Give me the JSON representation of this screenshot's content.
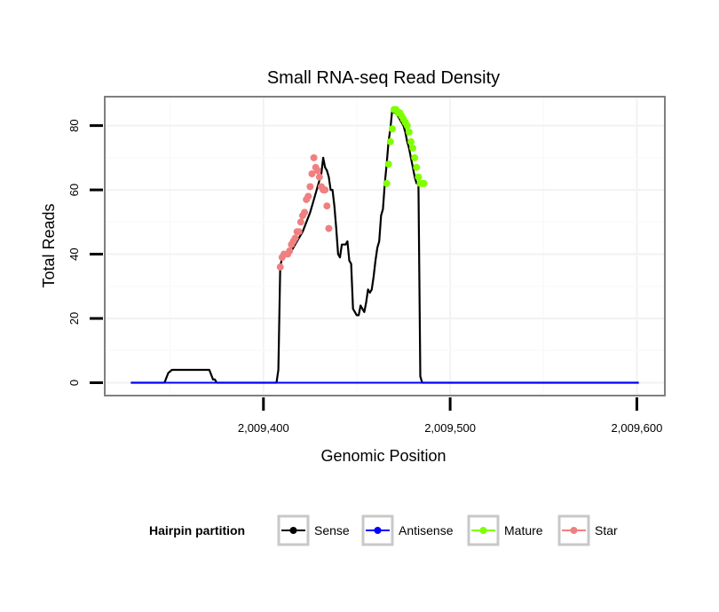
{
  "chart_data": {
    "type": "line",
    "title": "Small RNA-seq Read Density",
    "xlabel": "Genomic Position",
    "ylabel": "Total Reads",
    "xlim": [
      2009315,
      2009615
    ],
    "ylim": [
      -4,
      89
    ],
    "x_ticks": [
      2009400,
      2009500,
      2009600
    ],
    "x_tick_labels": [
      "2,009,400",
      "2,009,500",
      "2,009,600"
    ],
    "y_ticks": [
      0,
      20,
      40,
      60,
      80
    ],
    "y_tick_labels": [
      "0",
      "20",
      "40",
      "60",
      "80"
    ],
    "grid": true,
    "legend_position": "bottom",
    "legend": {
      "title": "Hairpin partition",
      "entries": [
        "Sense",
        "Antisense",
        "Mature",
        "Star"
      ]
    },
    "colors": {
      "Sense": "#000000",
      "Antisense": "#0000ff",
      "Mature": "#7fff00",
      "Star": "#f08080"
    },
    "series": [
      {
        "name": "Sense",
        "x": [
          2009329,
          2009347,
          2009349,
          2009351,
          2009369,
          2009371,
          2009373,
          2009374,
          2009375,
          2009376,
          2009407,
          2009408,
          2009409,
          2009410,
          2009411,
          2009413,
          2009415,
          2009417,
          2009419,
          2009421,
          2009423,
          2009425,
          2009427,
          2009429,
          2009431,
          2009432,
          2009433,
          2009434,
          2009435,
          2009436,
          2009437,
          2009438,
          2009439,
          2009440,
          2009441,
          2009442,
          2009443,
          2009444,
          2009445,
          2009446,
          2009447,
          2009448,
          2009449,
          2009450,
          2009451,
          2009452,
          2009453,
          2009454,
          2009455,
          2009456,
          2009457,
          2009458,
          2009459,
          2009460,
          2009461,
          2009462,
          2009463,
          2009464,
          2009465,
          2009466,
          2009467,
          2009468,
          2009469,
          2009470,
          2009471,
          2009472,
          2009473,
          2009474,
          2009475,
          2009476,
          2009477,
          2009478,
          2009479,
          2009480,
          2009481,
          2009482,
          2009483,
          2009484,
          2009485,
          2009486,
          2009487,
          2009488,
          2009489,
          2009490,
          2009501,
          2009601
        ],
        "values": [
          0,
          0,
          3,
          4,
          4,
          4,
          1,
          1,
          0,
          0,
          0,
          4,
          36,
          39,
          40,
          40,
          41,
          43,
          45,
          47,
          50,
          53,
          57,
          61,
          65,
          70,
          67,
          66,
          64,
          60,
          60,
          55,
          48,
          40,
          39,
          43,
          43,
          43,
          44,
          38,
          37,
          23,
          22,
          21,
          21,
          24,
          23,
          22,
          25,
          29,
          28,
          29,
          33,
          38,
          42,
          44,
          52,
          54,
          62,
          68,
          75,
          79,
          85,
          84,
          84,
          83,
          82,
          81,
          80,
          78,
          75,
          73,
          70,
          67,
          64,
          62,
          62,
          2,
          0,
          0,
          0,
          0,
          0,
          0,
          0,
          0
        ]
      },
      {
        "name": "Antisense",
        "x": [
          2009329,
          2009601
        ],
        "values": [
          0,
          0
        ]
      },
      {
        "name": "Mature",
        "x": [
          2009466,
          2009467,
          2009468,
          2009469,
          2009470,
          2009471,
          2009472,
          2009473,
          2009474,
          2009475,
          2009476,
          2009477,
          2009478,
          2009479,
          2009480,
          2009481,
          2009482,
          2009483,
          2009484,
          2009485,
          2009486
        ],
        "values": [
          62,
          68,
          75,
          79,
          85,
          85,
          84,
          84,
          83,
          82,
          81,
          80,
          78,
          75,
          73,
          70,
          67,
          64,
          62,
          62,
          62
        ]
      },
      {
        "name": "Star",
        "x": [
          2009409,
          2009410,
          2009411,
          2009413,
          2009414,
          2009415,
          2009416,
          2009417,
          2009418,
          2009419,
          2009420,
          2009421,
          2009422,
          2009423,
          2009424,
          2009425,
          2009426,
          2009427,
          2009428,
          2009429,
          2009430,
          2009431,
          2009432,
          2009433,
          2009434,
          2009435
        ],
        "values": [
          36,
          39,
          40,
          40,
          41,
          43,
          44,
          45,
          47,
          47,
          50,
          52,
          53,
          57,
          58,
          61,
          65,
          70,
          67,
          66,
          64,
          61,
          60,
          60,
          55,
          48
        ]
      }
    ]
  }
}
